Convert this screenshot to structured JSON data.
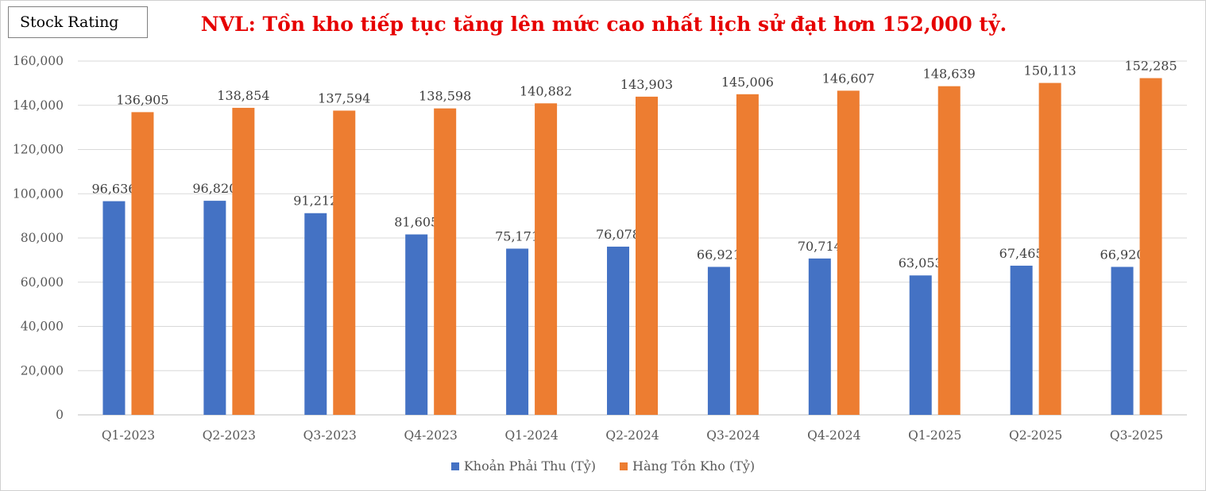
{
  "badge": "Stock Rating",
  "colors": {
    "receivables": "#4472c4",
    "inventory": "#ed7d31",
    "title": "#e60000",
    "grid": "#d9d9d9"
  },
  "chart_data": {
    "type": "bar",
    "title": "NVL: Tồn kho tiếp tục tăng lên mức cao nhất lịch sử đạt hơn 152,000 tỷ.",
    "xlabel": "",
    "ylabel": "",
    "ylim": [
      0,
      160000
    ],
    "yticks": [
      "0",
      "20,000",
      "40,000",
      "60,000",
      "80,000",
      "100,000",
      "120,000",
      "140,000",
      "160,000"
    ],
    "grid": true,
    "legend_position": "bottom",
    "categories": [
      "Q1-2023",
      "Q2-2023",
      "Q3-2023",
      "Q4-2023",
      "Q1-2024",
      "Q2-2024",
      "Q3-2024",
      "Q4-2024",
      "Q1-2025",
      "Q2-2025",
      "Q3-2025"
    ],
    "series": [
      {
        "name": "Khoản Phải Thu (Tỷ)",
        "values": [
          96636,
          96820,
          91212,
          81605,
          75171,
          76078,
          66921,
          70714,
          63053,
          67465,
          66920
        ],
        "labels": [
          "96,636",
          "96,820",
          "91,212",
          "81,605",
          "75,171",
          "76,078",
          "66,921",
          "70,714",
          "63,053",
          "67,465",
          "66,920"
        ]
      },
      {
        "name": "Hàng Tồn Kho (Tỷ)",
        "values": [
          136905,
          138854,
          137594,
          138598,
          140882,
          143903,
          145006,
          146607,
          148639,
          150113,
          152285
        ],
        "labels": [
          "136,905",
          "138,854",
          "137,594",
          "138,598",
          "140,882",
          "143,903",
          "145,006",
          "146,607",
          "148,639",
          "150,113",
          "152,285"
        ]
      }
    ]
  }
}
